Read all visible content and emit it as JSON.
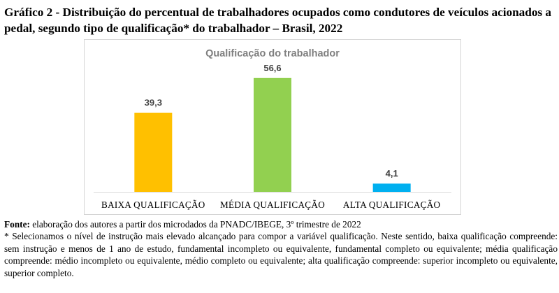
{
  "heading": {
    "label": "Gráfico 2",
    "text": " - Distribuição do percentual de trabalhadores ocupados como condutores de veículos acionados a pedal, segundo tipo de qualificação* do trabalhador – Brasil, 2022"
  },
  "chart_data": {
    "type": "bar",
    "title": "Qualificação do trabalhador",
    "categories": [
      "BAIXA QUALIFICAÇÃO",
      "MÉDIA QUALIFICAÇÃO",
      "ALTA QUALIFICAÇÃO"
    ],
    "values": [
      39.3,
      56.6,
      4.1
    ],
    "value_labels": [
      "39,3",
      "56,6",
      "4,1"
    ],
    "colors": [
      "#FFC000",
      "#92D050",
      "#00B0F0"
    ],
    "xlabel": "",
    "ylabel": "",
    "ylim": [
      0,
      60
    ],
    "grid": false,
    "legend": "none"
  },
  "notes": {
    "source_label": "Fonte:",
    "source_text": " elaboração dos autores a partir dos microdados da PNADC/IBEGE, 3º trimestre de 2022",
    "footnote": "* Selecionamos o nível de instrução mais elevado alcançado para compor a variável qualificação. Neste sentido, baixa qualificação compreende: sem instrução e menos de 1 ano de estudo, fundamental incompleto ou equivalente, fundamental completo ou equivalente; média qualificação compreende: médio incompleto ou equivalente, médio completo ou equivalente; alta qualificação compreende: superior incompleto ou equivalente, superior completo."
  }
}
